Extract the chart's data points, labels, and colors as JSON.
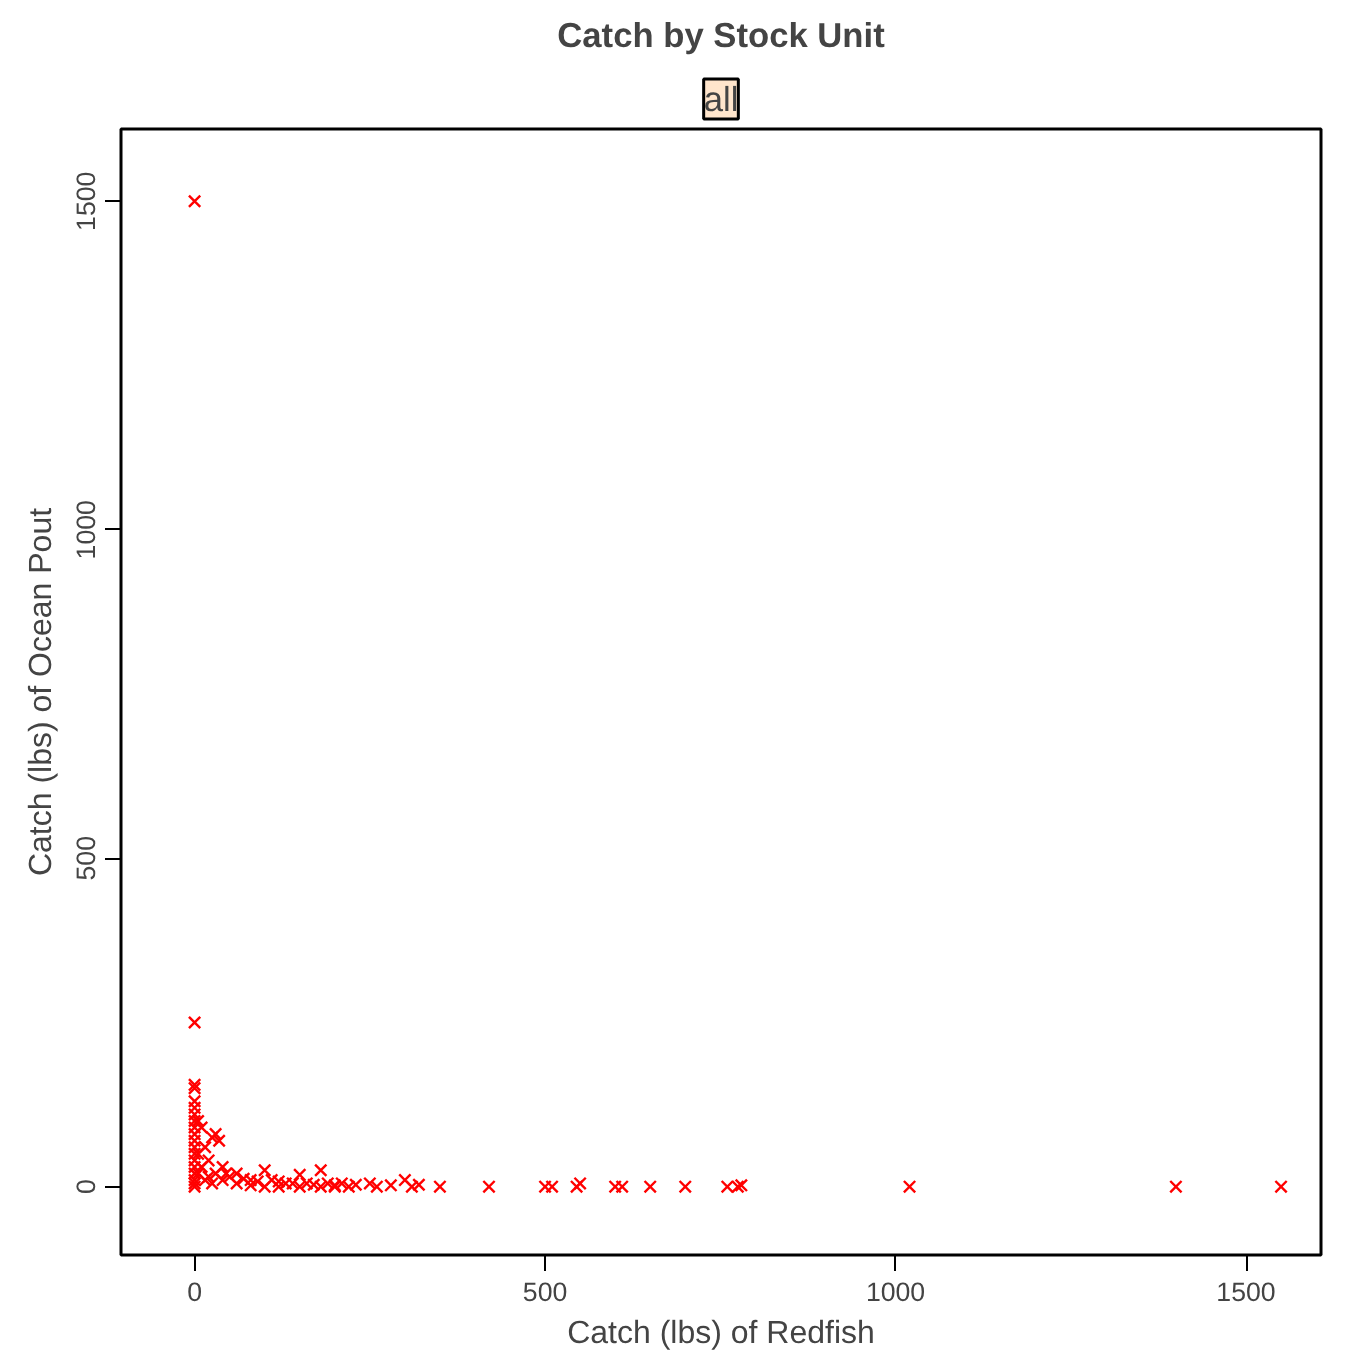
{
  "chart_data": {
    "type": "scatter",
    "title": "Catch by Stock Unit",
    "subtitle": "all",
    "xlabel": "Catch (lbs) of Redfish",
    "ylabel": "Catch (lbs) of Ocean Pout",
    "xlim": [
      -105,
      1607
    ],
    "ylim": [
      -104,
      1610
    ],
    "xticks": [
      0,
      500,
      1000,
      1500
    ],
    "yticks": [
      0,
      500,
      1000,
      1500
    ],
    "grid": false,
    "marker": "cross",
    "series": [
      {
        "color": "#ff0000",
        "x": [
          0,
          0,
          0,
          0,
          0,
          0,
          0,
          0,
          0,
          0,
          0,
          0,
          0,
          0,
          0,
          0,
          0,
          0,
          0,
          5,
          10,
          15,
          20,
          25,
          30,
          35,
          40,
          45,
          50,
          60,
          70,
          80,
          90,
          100,
          110,
          120,
          130,
          140,
          150,
          160,
          170,
          180,
          190,
          200,
          210,
          220,
          230,
          250,
          260,
          280,
          300,
          310,
          320,
          350,
          420,
          500,
          510,
          545,
          550,
          600,
          610,
          650,
          700,
          760,
          775,
          780,
          1020,
          1400,
          1550,
          5,
          5,
          10,
          15,
          20,
          25,
          30,
          40,
          60,
          80,
          100,
          120,
          150,
          180,
          200
        ],
        "values": [
          0,
          5,
          10,
          20,
          30,
          40,
          50,
          60,
          70,
          80,
          90,
          100,
          110,
          120,
          130,
          150,
          155,
          250,
          1500,
          100,
          90,
          60,
          40,
          75,
          80,
          70,
          30,
          20,
          15,
          20,
          12,
          10,
          8,
          25,
          10,
          8,
          5,
          5,
          18,
          5,
          3,
          25,
          5,
          2,
          5,
          0,
          3,
          5,
          0,
          2,
          10,
          0,
          3,
          0,
          0,
          0,
          0,
          0,
          5,
          0,
          0,
          0,
          0,
          0,
          0,
          2,
          0,
          0,
          0,
          50,
          20,
          30,
          10,
          15,
          5,
          20,
          10,
          5,
          2,
          0,
          0,
          0,
          0,
          0
        ]
      }
    ]
  }
}
